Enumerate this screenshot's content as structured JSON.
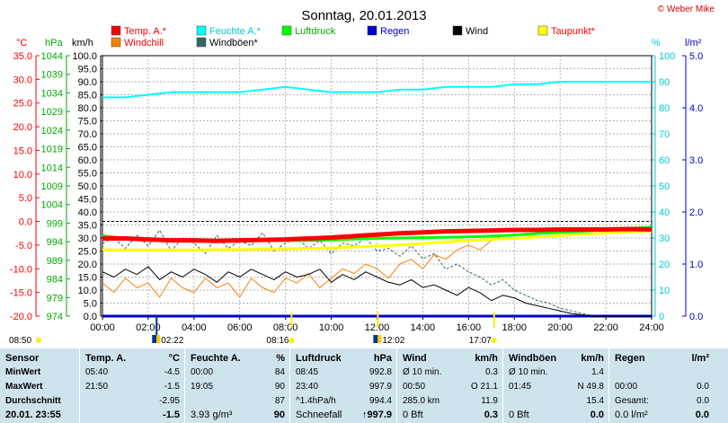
{
  "title": "Sonntag, 20.01.2013",
  "copyright": "© Weber Mike",
  "legend": [
    {
      "label": "Temp. A.*",
      "color": "#ff0000",
      "label_color": "#ff0000"
    },
    {
      "label": "Feuchte A.*",
      "color": "#00ffff",
      "label_color": "#00cccc"
    },
    {
      "label": "Luftdruck",
      "color": "#00ff00",
      "label_color": "#00aa00"
    },
    {
      "label": "Regen",
      "color": "#0000cc",
      "label_color": "#0000cc"
    },
    {
      "label": "Wind",
      "color": "#000000",
      "label_color": "#000000"
    },
    {
      "label": "Taupunkt*",
      "color": "#ffff00",
      "label_color": "#ff0000"
    },
    {
      "label": "Windchill",
      "color": "#ff8000",
      "label_color": "#ff0000"
    },
    {
      "label": "Windböen*",
      "color": "#336666",
      "label_color": "#000000"
    }
  ],
  "axis_units": {
    "temp": "°C",
    "pressure": "hPa",
    "wind": "km/h",
    "humidity": "%",
    "rain": "l/m²"
  },
  "markers": {
    "sunrise_left": "08:50",
    "moon_left": "02:22",
    "sunrise": "08:16",
    "noon": "12:02",
    "sunset": "17:07"
  },
  "chart_data": {
    "type": "line",
    "title": "Sonntag, 20.01.2013",
    "x_ticks": [
      "00:00",
      "02:00",
      "04:00",
      "06:00",
      "08:00",
      "10:00",
      "12:00",
      "14:00",
      "16:00",
      "18:00",
      "20:00",
      "22:00",
      "24:00"
    ],
    "axes": {
      "temp": {
        "label": "°C",
        "ylim": [
          -20,
          35
        ],
        "ticks": [
          "35.0",
          "30.0",
          "25.0",
          "20.0",
          "15.0",
          "10.0",
          "5.0",
          "0.0",
          "-5.0",
          "-10.0",
          "-15.0",
          "-20.0"
        ]
      },
      "pressure": {
        "label": "hPa",
        "ylim": [
          974,
          1044
        ],
        "ticks": [
          "1044",
          "1039",
          "1034",
          "1029",
          "1024",
          "1019",
          "1014",
          "1009",
          "1004",
          "999",
          "994",
          "989",
          "984",
          "979",
          "974"
        ]
      },
      "wind": {
        "label": "km/h",
        "ylim": [
          0,
          100
        ],
        "ticks": [
          "100.0",
          "95.0",
          "90.0",
          "85.0",
          "80.0",
          "75.0",
          "70.0",
          "65.0",
          "60.0",
          "55.0",
          "50.0",
          "45.0",
          "40.0",
          "35.0",
          "30.0",
          "25.0",
          "20.0",
          "15.0",
          "10.0",
          "5.0",
          "0.0"
        ]
      },
      "humidity": {
        "label": "%",
        "ylim": [
          0,
          100
        ],
        "ticks": [
          "100",
          "90",
          "80",
          "70",
          "60",
          "50",
          "40",
          "30",
          "20",
          "10",
          "0"
        ]
      },
      "rain": {
        "label": "l/m²",
        "ylim": [
          0,
          5
        ],
        "ticks": [
          "5.0",
          "4.0",
          "3.0",
          "2.0",
          "1.0",
          "0.0"
        ]
      }
    },
    "series": [
      {
        "name": "Temp. A.*",
        "axis": "temp",
        "color": "#ff0000",
        "x": [
          0,
          1,
          2,
          3,
          4,
          5,
          6,
          7,
          8,
          9,
          10,
          11,
          12,
          13,
          14,
          15,
          16,
          17,
          18,
          19,
          20,
          21,
          22,
          23,
          24
        ],
        "y": [
          -3.6,
          -3.6,
          -3.8,
          -4.0,
          -4.0,
          -4.1,
          -4.0,
          -3.9,
          -3.8,
          -3.6,
          -3.4,
          -3.1,
          -2.8,
          -2.5,
          -2.3,
          -2.1,
          -2.0,
          -1.9,
          -1.8,
          -1.8,
          -1.7,
          -1.7,
          -1.7,
          -1.6,
          -1.7
        ]
      },
      {
        "name": "Feuchte A.*",
        "axis": "humidity",
        "color": "#00ffff",
        "x": [
          0,
          1,
          2,
          3,
          4,
          5,
          6,
          7,
          8,
          9,
          10,
          11,
          12,
          13,
          14,
          15,
          16,
          17,
          18,
          19,
          20,
          21,
          22,
          23,
          24
        ],
        "y": [
          84,
          84,
          85,
          86,
          86,
          86,
          86,
          87,
          88,
          87,
          86,
          86,
          86,
          87,
          87,
          88,
          88,
          88,
          89,
          89,
          90,
          90,
          90,
          90,
          90
        ]
      },
      {
        "name": "Luftdruck",
        "axis": "pressure",
        "color": "#00ff00",
        "x": [
          0,
          1,
          2,
          3,
          4,
          5,
          6,
          7,
          8,
          9,
          10,
          11,
          12,
          13,
          14,
          15,
          16,
          17,
          18,
          19,
          20,
          21,
          22,
          23,
          24
        ],
        "y": [
          995.6,
          994.9,
          994.4,
          994.2,
          994.1,
          994.1,
          994.2,
          994.3,
          994.3,
          994.3,
          994.5,
          994.7,
          994.9,
          995.0,
          995.1,
          995.2,
          995.3,
          995.5,
          995.8,
          996.2,
          996.5,
          996.8,
          997.2,
          997.6,
          997.9
        ]
      },
      {
        "name": "Taupunkt*",
        "axis": "temp",
        "color": "#ffff00",
        "x": [
          0,
          2,
          4,
          6,
          8,
          10,
          12,
          14,
          16,
          18,
          20,
          22,
          24
        ],
        "y": [
          -6.0,
          -6.0,
          -6.0,
          -5.9,
          -5.8,
          -5.6,
          -5.2,
          -4.7,
          -4.0,
          -3.6,
          -3.0,
          -2.4,
          -2.0
        ]
      },
      {
        "name": "Wind",
        "axis": "wind",
        "color": "#000000",
        "x": [
          0,
          0.5,
          1,
          1.5,
          2,
          2.5,
          3,
          3.5,
          4,
          4.5,
          5,
          5.5,
          6,
          6.5,
          7,
          7.5,
          8,
          8.5,
          9,
          9.5,
          10,
          10.5,
          11,
          11.5,
          12,
          12.5,
          13,
          13.5,
          14,
          14.5,
          15,
          15.5,
          16,
          16.5,
          17,
          17.5,
          18,
          18.5,
          19,
          19.5,
          20,
          20.5,
          21,
          21.5,
          22,
          22.5,
          23,
          23.5,
          24
        ],
        "y": [
          17,
          15,
          18,
          16,
          19,
          14,
          17,
          15,
          18,
          16,
          13,
          17,
          15,
          18,
          16,
          14,
          17,
          15,
          16,
          18,
          13,
          16,
          14,
          17,
          15,
          13,
          12,
          14,
          11,
          12,
          10,
          8,
          11,
          9,
          6,
          8,
          7,
          5,
          4,
          3,
          2,
          1,
          0.5,
          0,
          0,
          0,
          0,
          0,
          0
        ]
      },
      {
        "name": "Windchill",
        "axis": "temp",
        "color": "#ff8000",
        "x": [
          0,
          0.5,
          1,
          1.5,
          2,
          2.5,
          3,
          3.5,
          4,
          4.5,
          5,
          5.5,
          6,
          6.5,
          7,
          7.5,
          8,
          8.5,
          9,
          9.5,
          10,
          10.5,
          11,
          11.5,
          12,
          12.5,
          13,
          13.5,
          14,
          14.5,
          15,
          15.5,
          16,
          16.5,
          17,
          17.5,
          18,
          18.5,
          19,
          19.5,
          20,
          21,
          22,
          23,
          24
        ],
        "y": [
          -13,
          -15,
          -12,
          -14,
          -13,
          -16,
          -12,
          -14,
          -15,
          -12,
          -14,
          -13,
          -16,
          -12,
          -14,
          -15,
          -12,
          -13,
          -11,
          -14,
          -12,
          -10,
          -11,
          -9,
          -10,
          -12,
          -9,
          -8,
          -10,
          -7,
          -8,
          -6,
          -5,
          -6,
          -4,
          -3,
          -3,
          -2.5,
          -2.5,
          -2.2,
          -2.0,
          -1.9,
          -1.8,
          -1.8,
          -1.8
        ]
      },
      {
        "name": "Windböen*",
        "axis": "wind",
        "color": "#336666",
        "dashed": true,
        "x": [
          0,
          0.5,
          1,
          1.5,
          2,
          2.5,
          3,
          3.5,
          4,
          4.5,
          5,
          5.5,
          6,
          6.5,
          7,
          7.5,
          8,
          8.5,
          9,
          9.5,
          10,
          10.5,
          11,
          11.5,
          12,
          12.5,
          13,
          13.5,
          14,
          14.5,
          15,
          15.5,
          16,
          16.5,
          17,
          17.5,
          18,
          18.5,
          19,
          19.5,
          20,
          20.5,
          21,
          21.5,
          22,
          22.5,
          23,
          23.5,
          24
        ],
        "y": [
          28,
          30,
          26,
          31,
          27,
          33,
          25,
          30,
          28,
          24,
          31,
          26,
          29,
          27,
          32,
          25,
          28,
          30,
          26,
          29,
          24,
          28,
          27,
          30,
          25,
          26,
          23,
          27,
          22,
          24,
          18,
          20,
          17,
          15,
          12,
          14,
          10,
          8,
          6,
          5,
          3,
          2,
          1,
          0,
          0,
          0,
          0,
          0,
          0
        ]
      },
      {
        "name": "Regen",
        "axis": "rain",
        "color": "#0000cc",
        "x": [
          0,
          24
        ],
        "y": [
          0,
          0
        ]
      }
    ]
  },
  "stats": {
    "headers": {
      "sensor": "Sensor",
      "temp": "Temp. A.",
      "temp_unit": "°C",
      "hum": "Feuchte A.",
      "hum_unit": "%",
      "press": "Luftdruck",
      "press_unit": "hPa",
      "wind": "Wind",
      "wind_unit": "km/h",
      "gust": "Windböen",
      "gust_unit": "km/h",
      "rain": "Regen",
      "rain_unit": "l/m²"
    },
    "rows": [
      {
        "label": "MinWert",
        "temp_time": "05:40",
        "temp_val": "-4.5",
        "hum_time": "00:00",
        "hum_val": "84",
        "press_time": "08:45",
        "press_val": "992.8",
        "wind_a": "Ø 10 min.",
        "wind_b": "0.3",
        "gust_a": "Ø 10 min.",
        "gust_b": "1.4",
        "rain_a": "",
        "rain_b": ""
      },
      {
        "label": "MaxWert",
        "temp_time": "21:50",
        "temp_val": "-1.5",
        "hum_time": "19:05",
        "hum_val": "90",
        "press_time": "23:40",
        "press_val": "997.9",
        "wind_a": "00:50",
        "wind_dir": "O 21.1",
        "wind_b": "",
        "gust_a": "01:45",
        "gust_dir": "N 49.8",
        "gust_b": "",
        "rain_a": "00:00",
        "rain_b": "0.0"
      },
      {
        "label": "Durchschnitt",
        "temp_time": "",
        "temp_val": "-2.95",
        "hum_time": "",
        "hum_val": "87",
        "press_time": "^1.4hPa/h",
        "press_val": "994.4",
        "wind_a": "285.0 km",
        "wind_b": "11.9",
        "gust_a": "",
        "gust_b": "15.4",
        "rain_a": "Gesamt:",
        "rain_b": "0.0"
      },
      {
        "label": "20.01.  23:55",
        "temp_time": "",
        "temp_val": "-1.5",
        "hum_time": "3.93 g/m³",
        "hum_val": "90",
        "press_time": "Schneefall",
        "press_val": "↑997.9",
        "wind_a": "0 Bft",
        "wind_b": "0.3",
        "gust_a": "0 Bft",
        "gust_b": "0.0",
        "rain_a": "0.0 l/m²",
        "rain_b": "0.0"
      }
    ]
  }
}
